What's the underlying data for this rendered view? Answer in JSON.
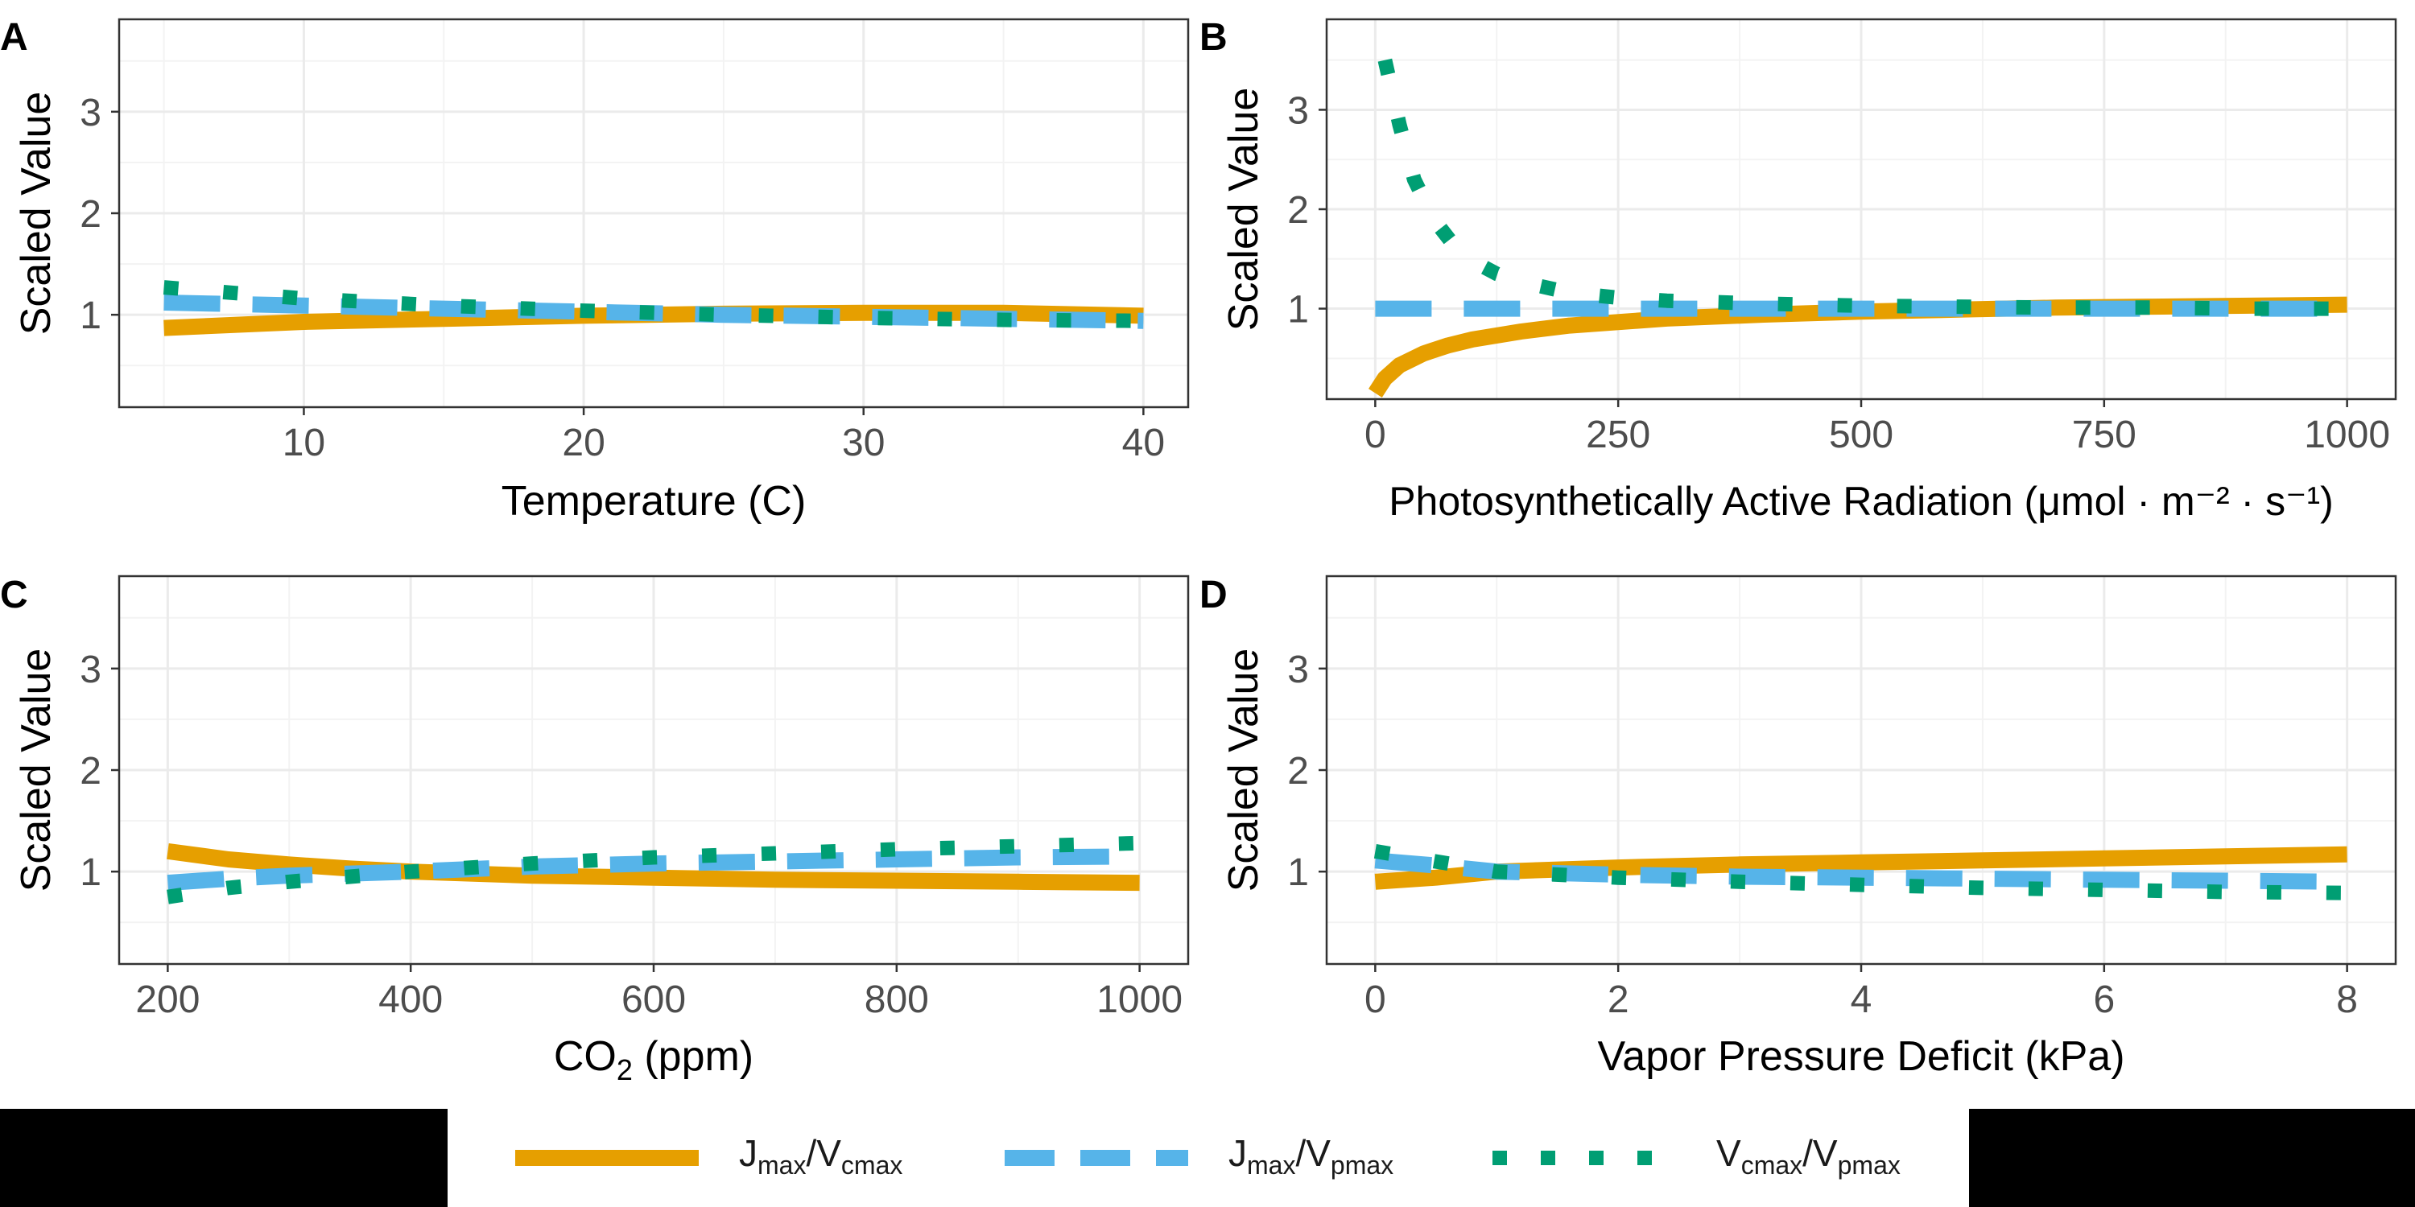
{
  "colors": {
    "jv_cmax": "#E69F00",
    "jv_pmax": "#56B4E9",
    "vc_vp": "#009E73",
    "grid": "#EBEBEB",
    "axis_text": "#4D4D4D",
    "frame": "#333333"
  },
  "legend": {
    "position": "bottom",
    "items": [
      {
        "main": "J",
        "sub": "max",
        "sep": "/V",
        "sub2": "cmax",
        "style": "solid",
        "color_key": "jv_cmax"
      },
      {
        "main": "J",
        "sub": "max",
        "sep": "/V",
        "sub2": "pmax",
        "style": "dashed",
        "color_key": "jv_pmax"
      },
      {
        "main": "V",
        "sub": "cmax",
        "sep": "/V",
        "sub2": "pmax",
        "style": "dotted",
        "color_key": "vc_vp"
      }
    ]
  },
  "chart_data": [
    {
      "panel": "A",
      "type": "line",
      "xlabel": "Temperature (C)",
      "ylabel": "Scaled Value",
      "xlim": [
        3.4,
        41.6
      ],
      "ylim": [
        0.09,
        3.91
      ],
      "xticks": [
        10,
        20,
        30,
        40
      ],
      "xtick_labels": [
        "10",
        "20",
        "30",
        "40"
      ],
      "yticks": [
        1,
        2,
        3
      ],
      "ytick_labels": [
        "1",
        "2",
        "3"
      ],
      "grid": true,
      "series": [
        {
          "name": "Jmax/Vcmax",
          "style": "solid",
          "x": [
            5,
            10,
            15,
            20,
            25,
            30,
            35,
            40
          ],
          "y": [
            0.87,
            0.93,
            0.96,
            0.99,
            1.01,
            1.02,
            1.02,
            0.99
          ]
        },
        {
          "name": "Jmax/Vpmax",
          "style": "dashed",
          "x": [
            5,
            10,
            15,
            20,
            25,
            30,
            35,
            40
          ],
          "y": [
            1.12,
            1.09,
            1.06,
            1.03,
            1.0,
            0.98,
            0.96,
            0.94
          ]
        },
        {
          "name": "Vcmax/Vpmax",
          "style": "dotted",
          "x": [
            5,
            10,
            15,
            20,
            25,
            30,
            35,
            40
          ],
          "y": [
            1.27,
            1.16,
            1.09,
            1.04,
            1.0,
            0.97,
            0.95,
            0.94
          ]
        }
      ]
    },
    {
      "panel": "B",
      "type": "line",
      "xlabel": "Photosynthetically Active Radiation (μmol · m⁻² · s⁻¹)",
      "ylabel": "Scaled Value",
      "xlim": [
        -50,
        1050
      ],
      "ylim": [
        0.09,
        3.91
      ],
      "xticks": [
        0,
        250,
        500,
        750,
        1000
      ],
      "xtick_labels": [
        "0",
        "250",
        "500",
        "750",
        "1000"
      ],
      "yticks": [
        1,
        2,
        3
      ],
      "ytick_labels": [
        "1",
        "2",
        "3"
      ],
      "grid": true,
      "series": [
        {
          "name": "Jmax/Vcmax",
          "style": "solid",
          "x": [
            0,
            10,
            25,
            50,
            75,
            100,
            150,
            200,
            300,
            400,
            500,
            600,
            700,
            800,
            900,
            1000
          ],
          "y": [
            0.15,
            0.3,
            0.43,
            0.55,
            0.63,
            0.69,
            0.77,
            0.83,
            0.9,
            0.94,
            0.97,
            0.99,
            1.01,
            1.02,
            1.03,
            1.04
          ]
        },
        {
          "name": "Jmax/Vpmax",
          "style": "dashed",
          "x": [
            0,
            1000
          ],
          "y": [
            1.0,
            1.0
          ]
        },
        {
          "name": "Vcmax/Vpmax",
          "style": "dotted",
          "x": [
            10,
            25,
            40,
            60,
            80,
            100,
            125,
            150,
            200,
            250,
            300,
            400,
            500,
            600,
            700,
            800,
            900,
            1000
          ],
          "y": [
            3.5,
            2.85,
            2.3,
            1.9,
            1.65,
            1.48,
            1.35,
            1.27,
            1.16,
            1.11,
            1.08,
            1.05,
            1.03,
            1.02,
            1.01,
            1.01,
            1.0,
            1.0
          ]
        }
      ]
    },
    {
      "panel": "C",
      "type": "line",
      "xlabel_main": "CO",
      "xlabel_sub": "2",
      "xlabel_rest": " (ppm)",
      "ylabel": "Scaled Value",
      "xlim": [
        160,
        1040
      ],
      "ylim": [
        0.09,
        3.91
      ],
      "xticks": [
        200,
        400,
        600,
        800,
        1000
      ],
      "xtick_labels": [
        "200",
        "400",
        "600",
        "800",
        "1000"
      ],
      "yticks": [
        1,
        2,
        3
      ],
      "ytick_labels": [
        "1",
        "2",
        "3"
      ],
      "grid": true,
      "series": [
        {
          "name": "Jmax/Vcmax",
          "style": "solid",
          "x": [
            200,
            250,
            300,
            350,
            400,
            500,
            600,
            700,
            800,
            900,
            1000
          ],
          "y": [
            1.2,
            1.12,
            1.07,
            1.03,
            1.0,
            0.96,
            0.94,
            0.92,
            0.91,
            0.9,
            0.89
          ]
        },
        {
          "name": "Jmax/Vpmax",
          "style": "dashed",
          "x": [
            200,
            250,
            300,
            400,
            500,
            600,
            700,
            800,
            900,
            1000
          ],
          "y": [
            0.89,
            0.93,
            0.96,
            1.0,
            1.05,
            1.08,
            1.1,
            1.12,
            1.14,
            1.15
          ]
        },
        {
          "name": "Vcmax/Vpmax",
          "style": "dotted",
          "x": [
            200,
            250,
            300,
            400,
            500,
            600,
            700,
            800,
            900,
            1000
          ],
          "y": [
            0.75,
            0.84,
            0.9,
            1.0,
            1.08,
            1.14,
            1.18,
            1.22,
            1.25,
            1.28
          ]
        }
      ]
    },
    {
      "panel": "D",
      "type": "line",
      "xlabel": "Vapor Pressure Deficit (kPa)",
      "ylabel": "Scaled Value",
      "xlim": [
        -0.4,
        8.4
      ],
      "ylim": [
        0.09,
        3.91
      ],
      "xticks": [
        0,
        2,
        4,
        6,
        8
      ],
      "xtick_labels": [
        "0",
        "2",
        "4",
        "6",
        "8"
      ],
      "yticks": [
        1,
        2,
        3
      ],
      "ytick_labels": [
        "1",
        "2",
        "3"
      ],
      "grid": true,
      "series": [
        {
          "name": "Jmax/Vcmax",
          "style": "solid",
          "x": [
            0,
            0.5,
            1,
            2,
            3,
            4,
            5,
            6,
            7,
            8
          ],
          "y": [
            0.9,
            0.94,
            1.0,
            1.04,
            1.07,
            1.09,
            1.11,
            1.13,
            1.15,
            1.17
          ]
        },
        {
          "name": "Jmax/Vpmax",
          "style": "dashed",
          "x": [
            0,
            0.5,
            1,
            2,
            3,
            4,
            5,
            6,
            7,
            8
          ],
          "y": [
            1.11,
            1.06,
            1.0,
            0.97,
            0.95,
            0.94,
            0.93,
            0.92,
            0.91,
            0.9
          ]
        },
        {
          "name": "Vcmax/Vpmax",
          "style": "dotted",
          "x": [
            0,
            0.5,
            1,
            2,
            3,
            4,
            5,
            6,
            7,
            8
          ],
          "y": [
            1.2,
            1.1,
            1.0,
            0.94,
            0.9,
            0.87,
            0.84,
            0.82,
            0.8,
            0.79
          ]
        }
      ]
    }
  ]
}
